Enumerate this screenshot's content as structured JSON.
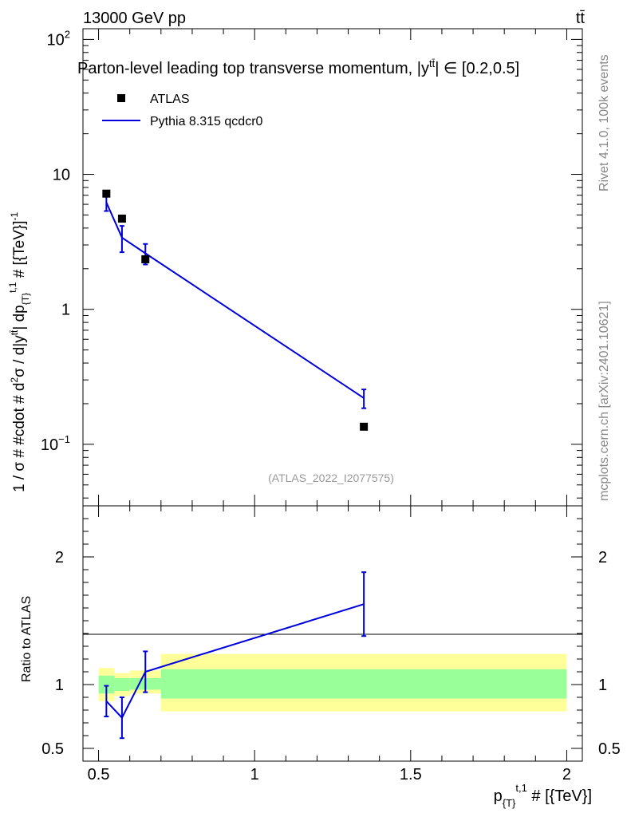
{
  "header": {
    "collision": "13000 GeV pp",
    "process": "tt̄"
  },
  "side_labels": {
    "rivet": "Rivet 4.1.0,  100k events",
    "source": "mcplots.cern.ch [arXiv:2401.10621]"
  },
  "chart_data": [
    {
      "type": "scatter",
      "panel": "main",
      "title": "Parton-level leading top transverse momentum, |y^{tt̄}| ∈ [0.2,0.5]",
      "title_parts": {
        "prefix": "Parton-level leading top transverse momentum, |y",
        "sup": "tt̄",
        "suffix": "| ∈ [0.2,0.5]"
      },
      "analysis_tag": "(ATLAS_2022_I2077575)",
      "ylabel": "1 / σ # #cdot # d²σ / d|y^{tt̄}| dp_{T}^{t,1} # [{TeV}]⁻¹",
      "ylabel_parts": {
        "a": "1 / σ # #cdot # d",
        "b": "2",
        "c": "σ / d|y",
        "d": "tt̄",
        "e": "| dp",
        "f": "{T}",
        "g": "t,1",
        "h": " # [{TeV}]",
        "i": "-1"
      },
      "yscale": "log",
      "ylim": [
        0.035,
        120
      ],
      "xlim": [
        0.45,
        2.05
      ],
      "y_ticks": [
        {
          "value": 100,
          "label": "10",
          "exp": "2"
        },
        {
          "value": 10,
          "label": "10",
          "exp": ""
        },
        {
          "value": 1,
          "label": "1",
          "exp": ""
        },
        {
          "value": 0.1,
          "label": "10",
          "exp": "−1"
        }
      ],
      "legend": [
        {
          "name": "ATLAS",
          "marker": "square",
          "color": "#000000"
        },
        {
          "name": "Pythia 8.315 qcdcr0",
          "marker": "line",
          "color": "#0000dd"
        }
      ],
      "series": [
        {
          "name": "ATLAS",
          "x": [
            0.525,
            0.575,
            0.65,
            1.35
          ],
          "y": [
            7.2,
            4.7,
            2.35,
            0.135
          ],
          "yerr": [
            0.35,
            0.2,
            0.1,
            0.006
          ]
        },
        {
          "name": "Pythia 8.315 qcdcr0",
          "x": [
            0.525,
            0.575,
            0.65,
            1.35
          ],
          "y": [
            6.2,
            3.4,
            2.6,
            0.22
          ],
          "yerr_lo": [
            0.85,
            0.75,
            0.45,
            0.035
          ],
          "yerr_hi": [
            0.85,
            0.75,
            0.45,
            0.035
          ]
        }
      ]
    },
    {
      "type": "line",
      "panel": "ratio",
      "ylabel": "Ratio to ATLAS",
      "ylim": [
        0.4,
        2.4
      ],
      "xlim": [
        0.45,
        2.05
      ],
      "xlabel_parts": {
        "a": "p",
        "b": "{T}",
        "c": "t,1",
        "d": " # [{TeV}]"
      },
      "x_ticks": [
        {
          "value": 0.5,
          "label": "0.5"
        },
        {
          "value": 1,
          "label": "1"
        },
        {
          "value": 1.5,
          "label": "1.5"
        },
        {
          "value": 2,
          "label": "2"
        }
      ],
      "y_ticks": [
        {
          "value": 0.5,
          "label": "0.5"
        },
        {
          "value": 1,
          "label": "1"
        },
        {
          "value": 2,
          "label": "2"
        }
      ],
      "bands": [
        {
          "x_lo": 0.5,
          "x_hi": 0.55,
          "inner": [
            0.93,
            1.07
          ],
          "outer": [
            0.87,
            1.13
          ]
        },
        {
          "x_lo": 0.55,
          "x_hi": 0.6,
          "inner": [
            0.95,
            1.05
          ],
          "outer": [
            0.91,
            1.09
          ]
        },
        {
          "x_lo": 0.6,
          "x_hi": 0.7,
          "inner": [
            0.96,
            1.05
          ],
          "outer": [
            0.93,
            1.11
          ]
        },
        {
          "x_lo": 0.7,
          "x_hi": 2.0,
          "inner": [
            0.89,
            1.12
          ],
          "outer": [
            0.79,
            1.24
          ]
        }
      ],
      "series": [
        {
          "name": "Pythia 8.315 qcdcr0",
          "x": [
            0.525,
            0.575,
            0.65,
            1.35
          ],
          "y": [
            0.87,
            0.74,
            1.1,
            1.63
          ],
          "yerr_lo": [
            0.12,
            0.16,
            0.16,
            0.25
          ],
          "yerr_hi": [
            0.12,
            0.16,
            0.16,
            0.25
          ]
        }
      ]
    }
  ],
  "colors": {
    "mc": "#0000dd",
    "data": "#000000",
    "band_inner": "#99ff99",
    "band_outer": "#ffff99",
    "side_text": "#888888",
    "tag_text": "#999999"
  }
}
